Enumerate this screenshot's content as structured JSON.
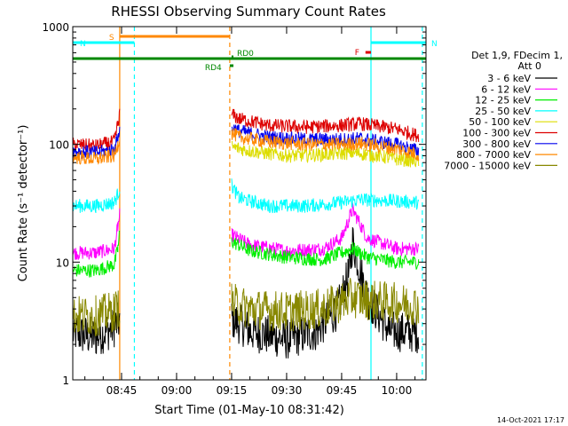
{
  "chart_data": {
    "type": "line",
    "title": "RHESSI Observing Summary Count Rates",
    "xlabel": "Start Time (01-May-10 08:31:42)",
    "ylabel": "Count Rate (s⁻¹ detector⁻¹)",
    "ylog": true,
    "ylim": [
      1,
      1000
    ],
    "xlim": [
      "08:31:42",
      "10:08:00"
    ],
    "x_ticks": [
      "08:45",
      "09:00",
      "09:15",
      "09:30",
      "09:45",
      "10:00"
    ],
    "y_ticks": [
      "1",
      "10",
      "100",
      "1000"
    ],
    "grid": false,
    "legend_position": "right",
    "legend_header": [
      "Det 1,9, FDecim 1,",
      "Att 0"
    ],
    "footer": "14-Oct-2021 17:17",
    "data_gaps": [
      [
        "08:45:00",
        "09:14:30"
      ]
    ],
    "series": [
      {
        "name": "3 - 6 keV",
        "color": "#000000",
        "points": [
          [
            "08:31:42",
            2.5
          ],
          [
            "08:38",
            2.3
          ],
          [
            "08:43",
            2.8
          ],
          [
            "08:44:30",
            3.2
          ],
          [
            "09:15",
            3.3
          ],
          [
            "09:20",
            2.6
          ],
          [
            "09:30",
            2.2
          ],
          [
            "09:38",
            2.6
          ],
          [
            "09:44",
            4
          ],
          [
            "09:47",
            8
          ],
          [
            "09:48",
            15
          ],
          [
            "09:52",
            5
          ],
          [
            "09:58",
            2.6
          ],
          [
            "10:06",
            2.5
          ]
        ]
      },
      {
        "name": "6 - 12 keV",
        "color": "#ff00ff",
        "points": [
          [
            "08:31:42",
            12
          ],
          [
            "08:38",
            12
          ],
          [
            "08:43",
            13
          ],
          [
            "08:44",
            20
          ],
          [
            "08:44:30",
            25
          ],
          [
            "09:15",
            17
          ],
          [
            "09:20",
            14
          ],
          [
            "09:30",
            12.5
          ],
          [
            "09:40",
            13
          ],
          [
            "09:45",
            16
          ],
          [
            "09:48",
            28
          ],
          [
            "09:52",
            16
          ],
          [
            "10:00",
            13
          ],
          [
            "10:06",
            13
          ]
        ]
      },
      {
        "name": "12 - 25 keV",
        "color": "#00ee00",
        "points": [
          [
            "08:31:42",
            8.5
          ],
          [
            "08:38",
            8.5
          ],
          [
            "08:43",
            9.5
          ],
          [
            "08:44",
            13
          ],
          [
            "08:44:30",
            18
          ],
          [
            "09:15",
            15
          ],
          [
            "09:20",
            12.5
          ],
          [
            "09:30",
            11
          ],
          [
            "09:40",
            10.5
          ],
          [
            "09:48",
            13
          ],
          [
            "09:52",
            11
          ],
          [
            "10:00",
            10
          ],
          [
            "10:06",
            10
          ]
        ]
      },
      {
        "name": "25 - 50 keV",
        "color": "#00ffff",
        "points": [
          [
            "08:31:42",
            30
          ],
          [
            "08:38",
            30
          ],
          [
            "08:43",
            32
          ],
          [
            "08:44",
            38
          ],
          [
            "08:44:30",
            42
          ],
          [
            "09:15",
            45
          ],
          [
            "09:17",
            35
          ],
          [
            "09:25",
            30
          ],
          [
            "09:35",
            30
          ],
          [
            "09:45",
            32
          ],
          [
            "09:50",
            34
          ],
          [
            "10:00",
            33
          ],
          [
            "10:06",
            32
          ]
        ]
      },
      {
        "name": "50 - 100 keV",
        "color": "#dddd00",
        "points": [
          [
            "09:15",
            95
          ],
          [
            "09:20",
            88
          ],
          [
            "09:30",
            80
          ],
          [
            "09:40",
            82
          ],
          [
            "09:48",
            85
          ],
          [
            "09:55",
            80
          ],
          [
            "10:00",
            75
          ],
          [
            "10:06",
            72
          ]
        ]
      },
      {
        "name": "100 - 300 keV",
        "color": "#dd0000",
        "points": [
          [
            "08:31:42",
            100
          ],
          [
            "08:38",
            97
          ],
          [
            "08:43",
            105
          ],
          [
            "08:44",
            150
          ],
          [
            "08:44:30",
            180
          ],
          [
            "09:15",
            180
          ],
          [
            "09:17",
            165
          ],
          [
            "09:25",
            145
          ],
          [
            "09:35",
            140
          ],
          [
            "09:45",
            145
          ],
          [
            "09:50",
            150
          ],
          [
            "10:00",
            135
          ],
          [
            "10:06",
            118
          ]
        ]
      },
      {
        "name": "300 - 800 keV",
        "color": "#0000ee",
        "points": [
          [
            "08:31:42",
            88
          ],
          [
            "08:38",
            85
          ],
          [
            "08:43",
            90
          ],
          [
            "08:44",
            115
          ],
          [
            "08:44:30",
            130
          ],
          [
            "09:15",
            140
          ],
          [
            "09:17",
            130
          ],
          [
            "09:25",
            115
          ],
          [
            "09:35",
            110
          ],
          [
            "09:45",
            110
          ],
          [
            "09:50",
            112
          ],
          [
            "10:00",
            100
          ],
          [
            "10:06",
            88
          ]
        ]
      },
      {
        "name": "800 - 7000 keV",
        "color": "#ff8800",
        "points": [
          [
            "08:31:42",
            78
          ],
          [
            "08:38",
            75
          ],
          [
            "08:43",
            80
          ],
          [
            "08:44",
            100
          ],
          [
            "08:44:30",
            115
          ],
          [
            "09:15",
            125
          ],
          [
            "09:17",
            115
          ],
          [
            "09:25",
            105
          ],
          [
            "09:35",
            100
          ],
          [
            "09:45",
            100
          ],
          [
            "09:50",
            102
          ],
          [
            "10:00",
            92
          ],
          [
            "10:06",
            82
          ]
        ]
      },
      {
        "name": "7000 - 15000 keV",
        "color": "#888800",
        "points": [
          [
            "08:31:42",
            3.5
          ],
          [
            "08:38",
            3.5
          ],
          [
            "08:43",
            3.8
          ],
          [
            "08:44:30",
            4.2
          ],
          [
            "09:15",
            4.5
          ],
          [
            "09:20",
            4
          ],
          [
            "09:30",
            3.8
          ],
          [
            "09:40",
            4
          ],
          [
            "09:48",
            5
          ],
          [
            "09:52",
            4.8
          ],
          [
            "10:00",
            4.5
          ],
          [
            "10:06",
            4.3
          ]
        ]
      }
    ],
    "flag_bars": [
      {
        "label": "S",
        "color": "#ff8800",
        "start": "08:44:30",
        "end": "09:14:30",
        "label_color": "#ff8800"
      },
      {
        "label": "N",
        "color": "#00ffff",
        "start": "08:31:42",
        "end": "08:48:30",
        "label_color": "#00ffff"
      },
      {
        "label": "N",
        "color": "#00ffff",
        "start": "09:53:00",
        "end": "10:08:00",
        "label_color": "#00ffff"
      },
      {
        "label": "F",
        "color": "#dd0000",
        "start": "09:51:30",
        "end": "09:53:00",
        "label_color": "#dd0000"
      },
      {
        "label": "RD0",
        "color": "#008800",
        "start": "09:15:00",
        "end": "09:15:30",
        "label_color": "#008800"
      },
      {
        "label": "RD4",
        "color": "#008800",
        "start": "09:14:30",
        "end": "09:15:30",
        "label_color": "#008800"
      },
      {
        "label": "",
        "color": "#008800",
        "start": "08:31:42",
        "end": "10:08:00",
        "label_color": "#008800"
      }
    ],
    "vertical_markers": [
      {
        "time": "08:44:30",
        "color": "#ff8800",
        "style": "solid"
      },
      {
        "time": "08:48:30",
        "color": "#00ffff",
        "style": "dashed"
      },
      {
        "time": "09:14:30",
        "color": "#ff8800",
        "style": "dashed"
      },
      {
        "time": "09:53:00",
        "color": "#00ffff",
        "style": "solid"
      },
      {
        "time": "10:07:00",
        "color": "#00ffff",
        "style": "dashed"
      }
    ]
  }
}
